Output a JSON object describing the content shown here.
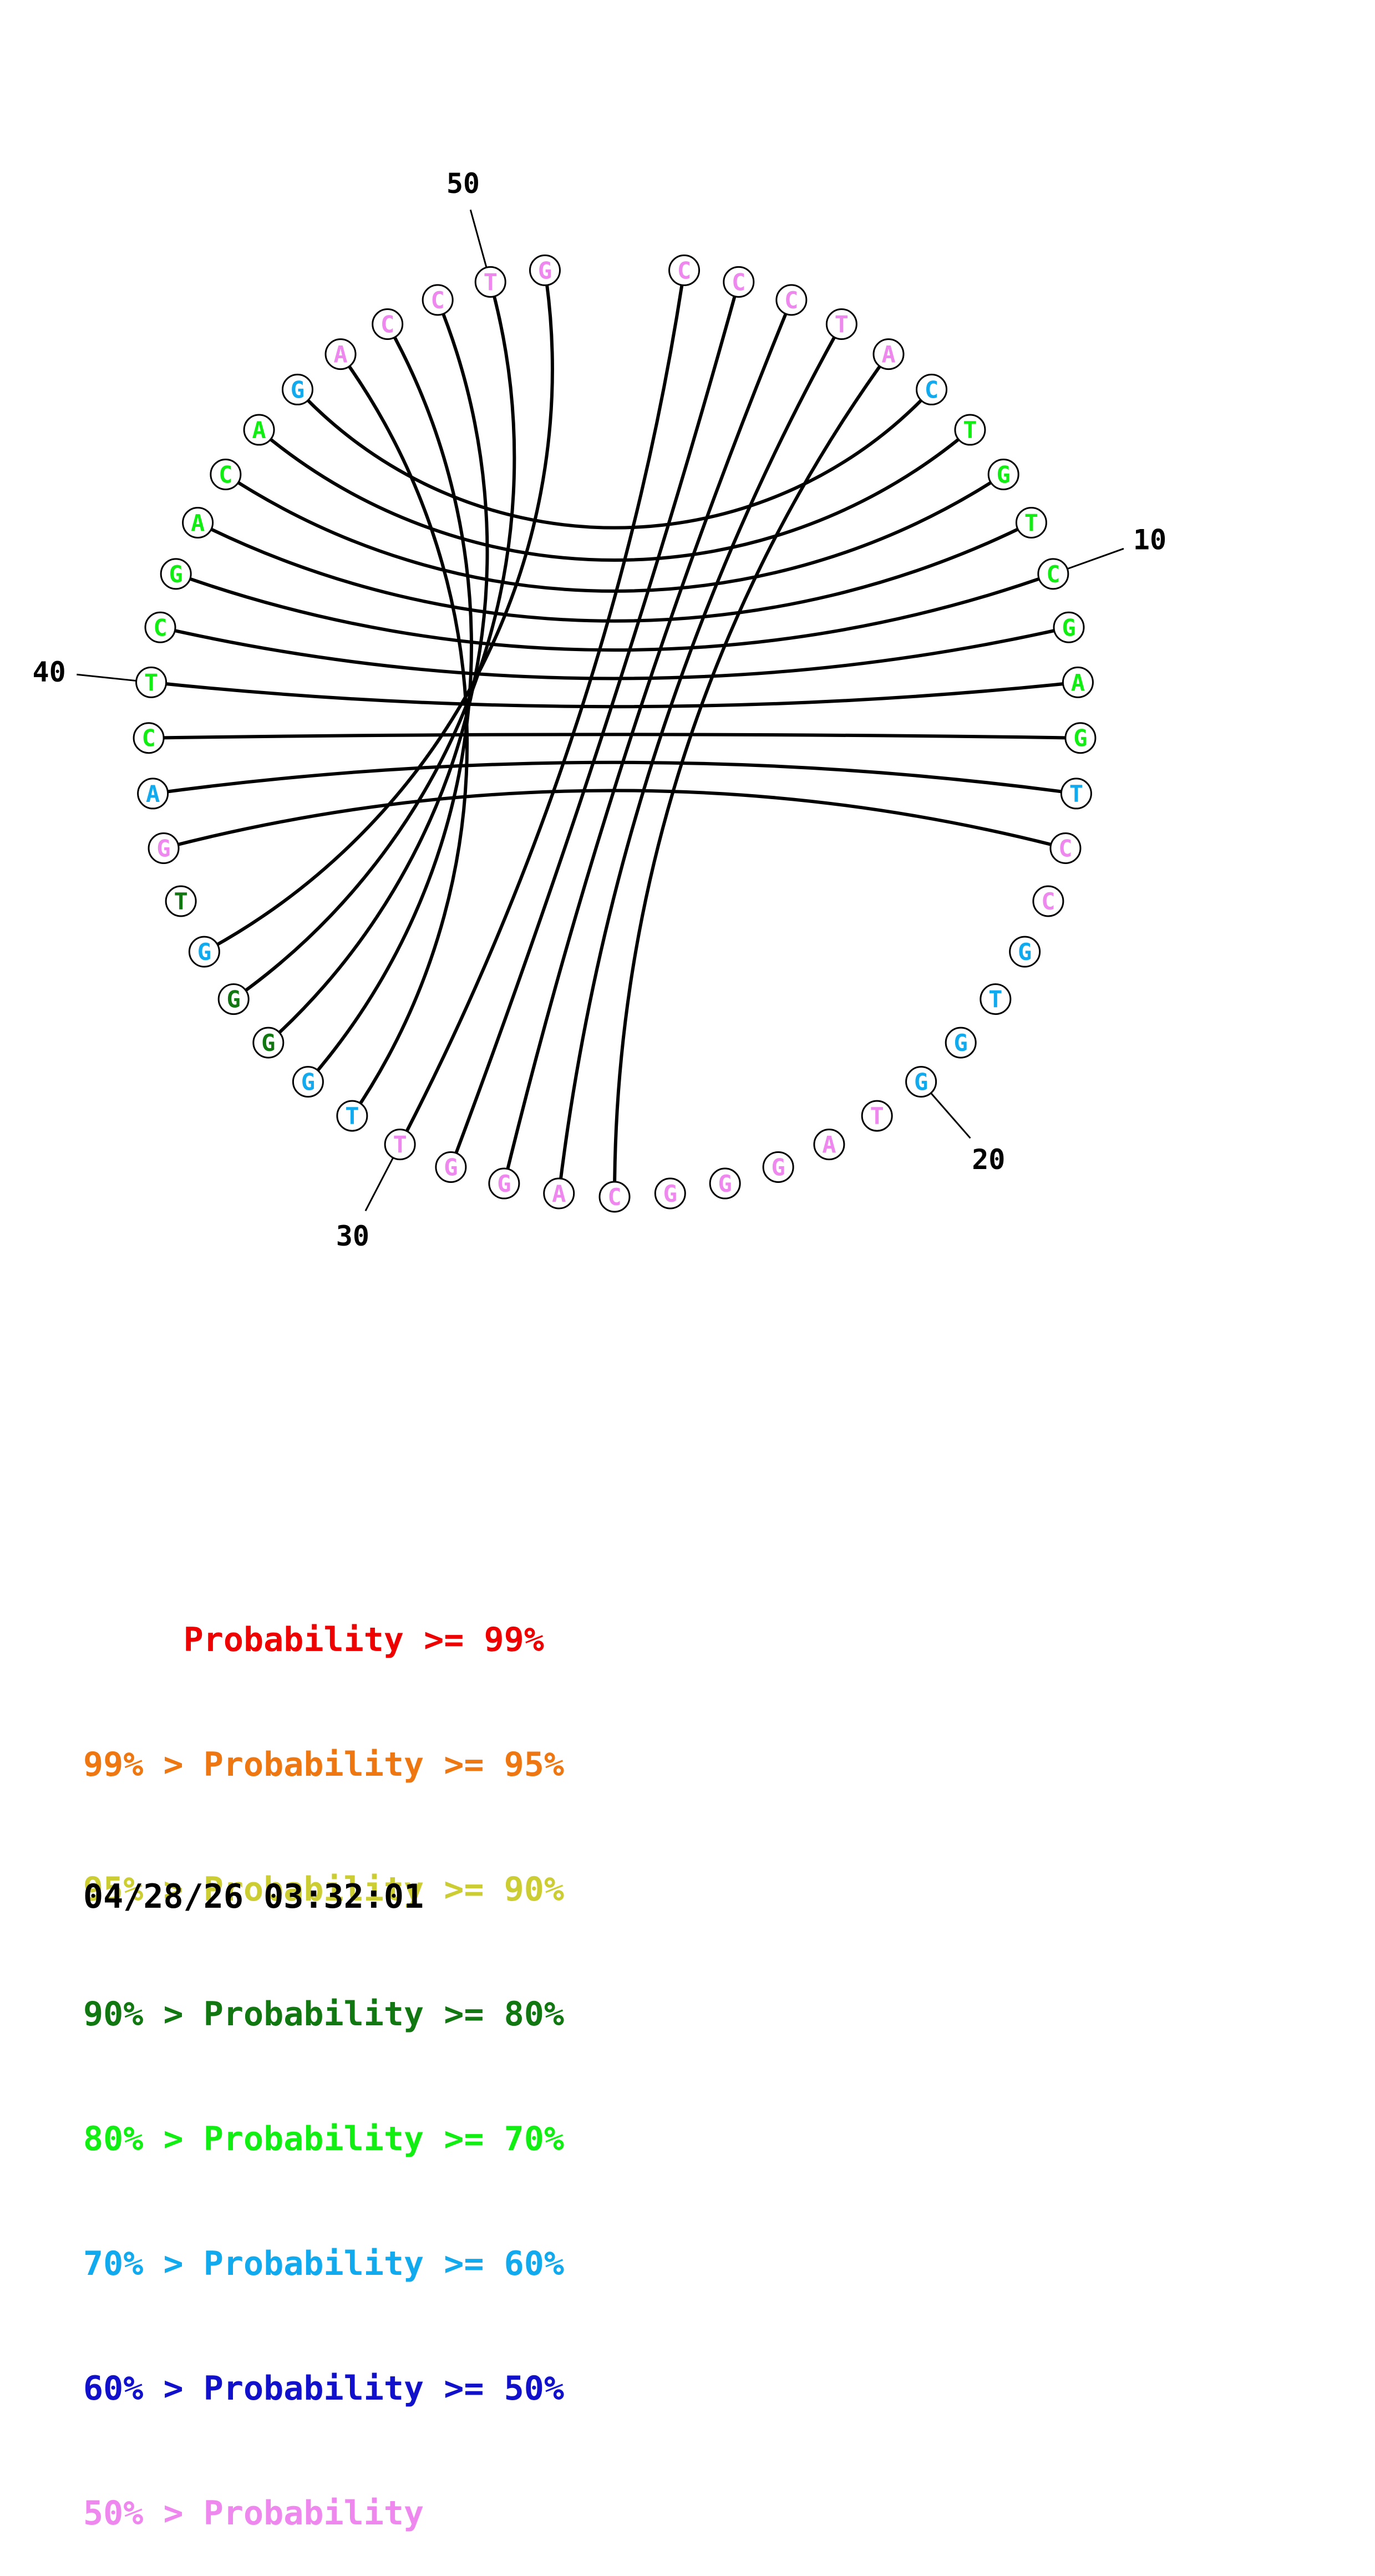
{
  "colors": {
    "p99": "#ee0000",
    "p95": "#ee7711",
    "p90": "#cccc33",
    "p80": "#117711",
    "p70": "#11ee11",
    "p60": "#11aaee",
    "p50": "#1111cc",
    "plow": "#ee88ee",
    "line": "#000000"
  },
  "sequence": [
    {
      "base": "C",
      "c": "plow"
    },
    {
      "base": "C",
      "c": "plow"
    },
    {
      "base": "C",
      "c": "plow"
    },
    {
      "base": "T",
      "c": "plow"
    },
    {
      "base": "A",
      "c": "plow"
    },
    {
      "base": "C",
      "c": "p60"
    },
    {
      "base": "T",
      "c": "p70"
    },
    {
      "base": "G",
      "c": "p70"
    },
    {
      "base": "T",
      "c": "p70"
    },
    {
      "base": "C",
      "c": "p70"
    },
    {
      "base": "G",
      "c": "p70"
    },
    {
      "base": "A",
      "c": "p70"
    },
    {
      "base": "G",
      "c": "p70"
    },
    {
      "base": "T",
      "c": "p60"
    },
    {
      "base": "C",
      "c": "plow"
    },
    {
      "base": "C",
      "c": "plow"
    },
    {
      "base": "G",
      "c": "p60"
    },
    {
      "base": "T",
      "c": "p60"
    },
    {
      "base": "G",
      "c": "p60"
    },
    {
      "base": "G",
      "c": "p60"
    },
    {
      "base": "T",
      "c": "plow"
    },
    {
      "base": "A",
      "c": "plow"
    },
    {
      "base": "G",
      "c": "plow"
    },
    {
      "base": "G",
      "c": "plow"
    },
    {
      "base": "G",
      "c": "plow"
    },
    {
      "base": "C",
      "c": "plow"
    },
    {
      "base": "A",
      "c": "plow"
    },
    {
      "base": "G",
      "c": "plow"
    },
    {
      "base": "G",
      "c": "plow"
    },
    {
      "base": "T",
      "c": "plow"
    },
    {
      "base": "T",
      "c": "p60"
    },
    {
      "base": "G",
      "c": "p60"
    },
    {
      "base": "G",
      "c": "p80"
    },
    {
      "base": "G",
      "c": "p80"
    },
    {
      "base": "G",
      "c": "p60"
    },
    {
      "base": "T",
      "c": "p80"
    },
    {
      "base": "G",
      "c": "plow"
    },
    {
      "base": "A",
      "c": "p60"
    },
    {
      "base": "C",
      "c": "p70"
    },
    {
      "base": "T",
      "c": "p70"
    },
    {
      "base": "C",
      "c": "p70"
    },
    {
      "base": "G",
      "c": "p70"
    },
    {
      "base": "A",
      "c": "p70"
    },
    {
      "base": "C",
      "c": "p70"
    },
    {
      "base": "A",
      "c": "p70"
    },
    {
      "base": "G",
      "c": "p60"
    },
    {
      "base": "A",
      "c": "plow"
    },
    {
      "base": "C",
      "c": "plow"
    },
    {
      "base": "C",
      "c": "plow"
    },
    {
      "base": "T",
      "c": "plow"
    },
    {
      "base": "G",
      "c": "plow"
    }
  ],
  "pairs": [
    [
      1,
      30
    ],
    [
      2,
      29
    ],
    [
      3,
      28
    ],
    [
      4,
      27
    ],
    [
      5,
      26
    ],
    [
      6,
      46
    ],
    [
      7,
      45
    ],
    [
      8,
      44
    ],
    [
      9,
      43
    ],
    [
      10,
      42
    ],
    [
      11,
      41
    ],
    [
      12,
      40
    ],
    [
      13,
      39
    ],
    [
      14,
      38
    ],
    [
      15,
      37
    ],
    [
      47,
      31
    ],
    [
      48,
      32
    ],
    [
      49,
      33
    ],
    [
      50,
      34
    ],
    [
      51,
      35
    ]
  ],
  "position_labels": [
    {
      "index": 10,
      "text": "10"
    },
    {
      "index": 20,
      "text": "20"
    },
    {
      "index": 30,
      "text": "30"
    },
    {
      "index": 40,
      "text": "40"
    },
    {
      "index": 50,
      "text": "50"
    }
  ],
  "legend": [
    {
      "text": "     Probability >= 99%",
      "c": "p99"
    },
    {
      "text": "99% > Probability >= 95%",
      "c": "p95"
    },
    {
      "text": "95% > Probability >= 90%",
      "c": "p90"
    },
    {
      "text": "90% > Probability >= 80%",
      "c": "p80"
    },
    {
      "text": "80% > Probability >= 70%",
      "c": "p70"
    },
    {
      "text": "70% > Probability >= 60%",
      "c": "p60"
    },
    {
      "text": "60% > Probability >= 50%",
      "c": "p50"
    },
    {
      "text": "50% > Probability",
      "c": "plow"
    }
  ],
  "timestamp": "04/28/26 03:32:01"
}
